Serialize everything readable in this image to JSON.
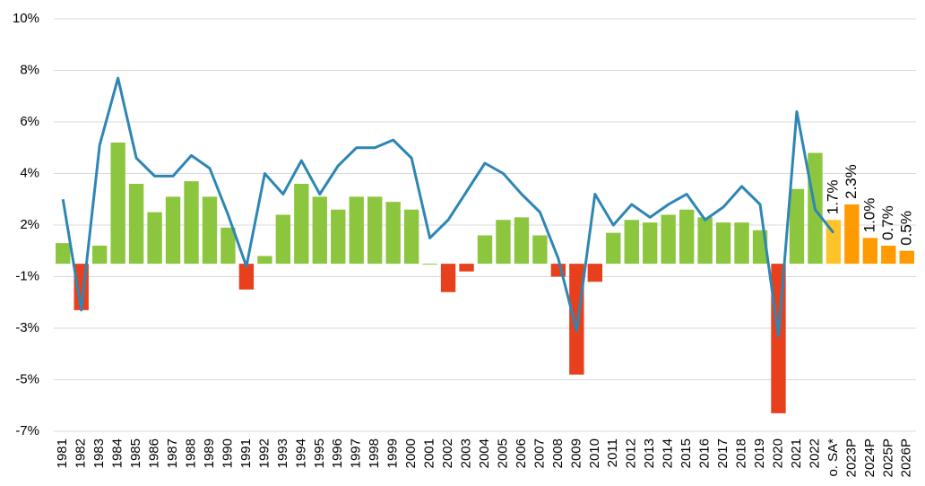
{
  "chart_data": {
    "type": "bar",
    "categories": [
      "1981",
      "1982",
      "1983",
      "1984",
      "1985",
      "1986",
      "1987",
      "1988",
      "1989",
      "1990",
      "1991",
      "1992",
      "1993",
      "1994",
      "1995",
      "1996",
      "1997",
      "1998",
      "1999",
      "2000",
      "2001",
      "2002",
      "2003",
      "2004",
      "2005",
      "2006",
      "2007",
      "2008",
      "2009",
      "2010",
      "2011",
      "2012",
      "2013",
      "2014",
      "2015",
      "2016",
      "2017",
      "2018",
      "2019",
      "2020",
      "2021",
      "2022",
      "o. SA*",
      "2023P",
      "2024P",
      "2025P",
      "2026P"
    ],
    "series": [
      {
        "type": "bar",
        "values": [
          0.8,
          -1.8,
          0.7,
          4.7,
          3.1,
          2.0,
          2.6,
          3.2,
          2.6,
          1.4,
          -1.0,
          0.3,
          1.9,
          3.1,
          2.6,
          2.1,
          2.6,
          2.6,
          2.4,
          2.1,
          0.0,
          -1.1,
          -0.3,
          1.1,
          1.7,
          1.8,
          1.1,
          -0.5,
          -4.3,
          -0.7,
          1.2,
          1.7,
          1.6,
          1.9,
          2.1,
          1.8,
          1.6,
          1.6,
          1.3,
          -5.8,
          2.9,
          4.3,
          1.7,
          2.3,
          1.0,
          0.7,
          0.5
        ],
        "value_labels": [
          null,
          null,
          null,
          null,
          null,
          null,
          null,
          null,
          null,
          null,
          null,
          null,
          null,
          null,
          null,
          null,
          null,
          null,
          null,
          null,
          null,
          null,
          null,
          null,
          null,
          null,
          null,
          null,
          null,
          null,
          null,
          null,
          null,
          null,
          null,
          null,
          null,
          null,
          null,
          null,
          null,
          null,
          "1.7%",
          "2.3%",
          "1.0%",
          "0.7%",
          "0.5%"
        ],
        "colors": [
          "#8cc63f",
          "#e8401c",
          "#8cc63f",
          "#8cc63f",
          "#8cc63f",
          "#8cc63f",
          "#8cc63f",
          "#8cc63f",
          "#8cc63f",
          "#8cc63f",
          "#e8401c",
          "#8cc63f",
          "#8cc63f",
          "#8cc63f",
          "#8cc63f",
          "#8cc63f",
          "#8cc63f",
          "#8cc63f",
          "#8cc63f",
          "#8cc63f",
          "#8cc63f",
          "#e8401c",
          "#e8401c",
          "#8cc63f",
          "#8cc63f",
          "#8cc63f",
          "#8cc63f",
          "#e8401c",
          "#e8401c",
          "#e8401c",
          "#8cc63f",
          "#8cc63f",
          "#8cc63f",
          "#8cc63f",
          "#8cc63f",
          "#8cc63f",
          "#8cc63f",
          "#8cc63f",
          "#8cc63f",
          "#e8401c",
          "#8cc63f",
          "#8cc63f",
          "#ffc32a",
          "#ff9a00",
          "#ff9a00",
          "#ff9a00",
          "#ff9a00"
        ]
      },
      {
        "type": "line",
        "color": "#2e86b5",
        "values": [
          2.5,
          -1.8,
          4.6,
          7.2,
          4.1,
          3.4,
          3.4,
          4.2,
          3.7,
          1.9,
          -0.1,
          3.5,
          2.7,
          4.0,
          2.7,
          3.8,
          4.5,
          4.5,
          4.8,
          4.1,
          1.0,
          1.7,
          2.8,
          3.9,
          3.5,
          2.7,
          2.0,
          0.2,
          -2.6,
          2.7,
          1.5,
          2.3,
          1.8,
          2.3,
          2.7,
          1.7,
          2.2,
          3.0,
          2.3,
          -2.8,
          5.9,
          2.1,
          1.2,
          null,
          null,
          null,
          null
        ]
      }
    ],
    "ylim": [
      -6.5,
      9.5
    ],
    "yticks": [
      {
        "value": 9.5,
        "label": "10%"
      },
      {
        "value": 7.5,
        "label": "8%"
      },
      {
        "value": 5.5,
        "label": "6%"
      },
      {
        "value": 3.5,
        "label": "4%"
      },
      {
        "value": 1.5,
        "label": "2%"
      },
      {
        "value": -0.5,
        "label": "-1%"
      },
      {
        "value": -2.5,
        "label": "-3%"
      },
      {
        "value": -4.5,
        "label": "-5%"
      },
      {
        "value": -6.5,
        "label": "-7%"
      }
    ],
    "grid": true
  }
}
